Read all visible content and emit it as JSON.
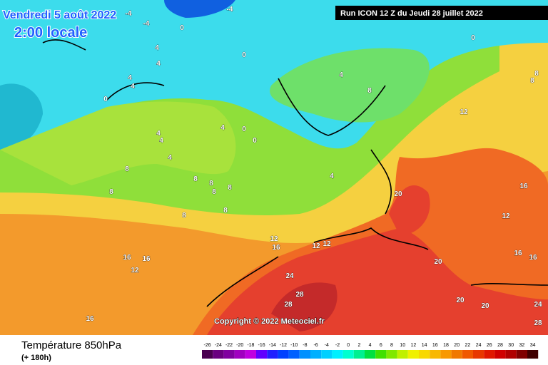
{
  "header": {
    "date": "Vendredi 5 août 2022",
    "time": "2:00 locale",
    "run": "Run ICON 12 Z du Jeudi 28 juillet 2022"
  },
  "copyright": "Copyright © 2022 Meteociel.fr",
  "footer": {
    "title": "Température 850hPa",
    "lead": "(+ 180h)"
  },
  "legend": [
    {
      "value": -26,
      "color": "#4a0050"
    },
    {
      "value": -24,
      "color": "#6a0080"
    },
    {
      "value": -22,
      "color": "#8000a0"
    },
    {
      "value": -20,
      "color": "#a000c0"
    },
    {
      "value": -18,
      "color": "#c000e0"
    },
    {
      "value": -16,
      "color": "#6000ff"
    },
    {
      "value": -14,
      "color": "#2020ff"
    },
    {
      "value": -12,
      "color": "#0040ff"
    },
    {
      "value": -10,
      "color": "#0060ff"
    },
    {
      "value": -8,
      "color": "#0090ff"
    },
    {
      "value": -6,
      "color": "#00b0ff"
    },
    {
      "value": -4,
      "color": "#00d0ff"
    },
    {
      "value": -2,
      "color": "#00f0ff"
    },
    {
      "value": 0,
      "color": "#00ffd0"
    },
    {
      "value": 2,
      "color": "#00f090"
    },
    {
      "value": 4,
      "color": "#00e040"
    },
    {
      "value": 6,
      "color": "#40e000"
    },
    {
      "value": 8,
      "color": "#80e800"
    },
    {
      "value": 10,
      "color": "#c0f000"
    },
    {
      "value": 12,
      "color": "#f0f000"
    },
    {
      "value": 14,
      "color": "#f8d800"
    },
    {
      "value": 16,
      "color": "#f8b800"
    },
    {
      "value": 18,
      "color": "#f89800"
    },
    {
      "value": 20,
      "color": "#f07800"
    },
    {
      "value": 22,
      "color": "#f05800"
    },
    {
      "value": 24,
      "color": "#e83800"
    },
    {
      "value": 26,
      "color": "#e01800"
    },
    {
      "value": 28,
      "color": "#d00000"
    },
    {
      "value": 30,
      "color": "#b00000"
    },
    {
      "value": 32,
      "color": "#800000"
    },
    {
      "value": 34,
      "color": "#400000"
    }
  ],
  "isotherm_labels": [
    -4,
    -4,
    0,
    -4,
    4,
    4,
    0,
    4,
    4,
    0,
    0,
    0,
    4,
    8,
    0,
    4,
    4,
    4,
    4,
    8,
    8,
    8,
    8,
    8,
    8,
    8,
    8,
    4,
    12,
    12,
    20,
    12,
    16,
    12,
    12,
    16,
    16,
    16,
    12,
    16,
    16,
    24,
    28,
    28,
    20,
    20,
    20,
    24,
    28,
    16,
    8,
    8
  ]
}
